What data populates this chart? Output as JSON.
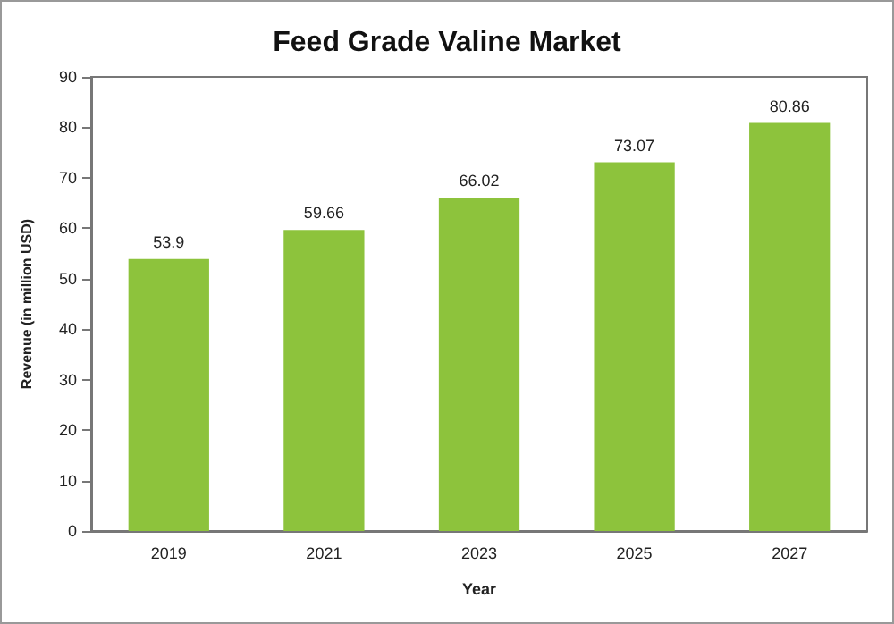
{
  "chart_data": {
    "type": "bar",
    "title": "Feed Grade Valine Market",
    "xlabel": "Year",
    "ylabel": "Revenue (in million USD)",
    "categories": [
      "2019",
      "2021",
      "2023",
      "2025",
      "2027"
    ],
    "values": [
      53.9,
      59.66,
      66.02,
      73.07,
      80.86
    ],
    "color": "#8dc33c",
    "ylim": [
      0,
      90
    ],
    "yticks": [
      0,
      10,
      20,
      30,
      40,
      50,
      60,
      70,
      80,
      90
    ],
    "grid": false,
    "data_labels": true
  }
}
